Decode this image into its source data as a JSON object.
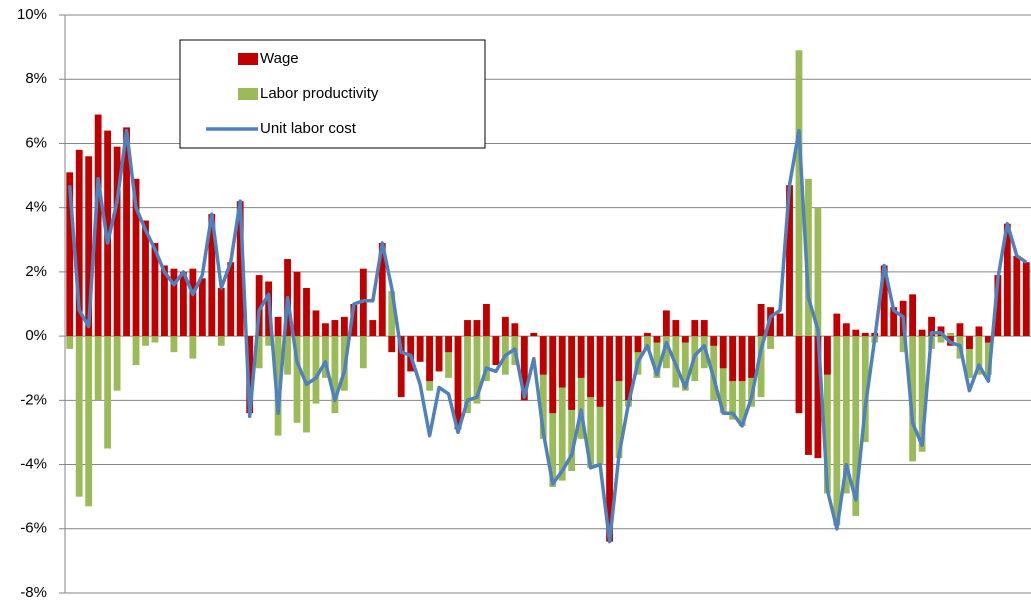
{
  "chart_data": {
    "type": "bar-line",
    "ylim": [
      -8,
      10
    ],
    "yticks": [
      {
        "value": -8,
        "label": "-8%"
      },
      {
        "value": -6,
        "label": "-6%"
      },
      {
        "value": -4,
        "label": "-4%"
      },
      {
        "value": -2,
        "label": "-2%"
      },
      {
        "value": 0,
        "label": "0%"
      },
      {
        "value": 2,
        "label": "2%"
      },
      {
        "value": 4,
        "label": "4%"
      },
      {
        "value": 6,
        "label": "6%"
      },
      {
        "value": 8,
        "label": "8%"
      },
      {
        "value": 10,
        "label": "10%"
      }
    ],
    "grid": true,
    "legend": "upper left",
    "series": [
      {
        "name": "Wage",
        "kind": "bar",
        "color": "#c00000",
        "values": [
          5.1,
          5.8,
          5.6,
          6.9,
          6.4,
          5.9,
          6.5,
          4.9,
          3.6,
          2.9,
          2.2,
          2.1,
          2.0,
          2.1,
          1.8,
          3.8,
          1.5,
          2.3,
          4.2,
          -2.4,
          1.9,
          1.7,
          0.6,
          2.4,
          2.0,
          1.5,
          0.8,
          0.4,
          0.5,
          0.6,
          1.0,
          2.1,
          0.5,
          2.9,
          -0.5,
          -1.9,
          -1.1,
          -0.8,
          -1.4,
          -1.1,
          -0.5,
          -2.9,
          0.5,
          0.5,
          1.0,
          -0.9,
          0.6,
          0.4,
          -2.0,
          0.1,
          -1.2,
          -2.4,
          -1.6,
          -2.3,
          -1.3,
          -1.9,
          -2.2,
          -6.4,
          -1.4,
          -2.0,
          -0.5,
          0.1,
          -0.2,
          0.8,
          0.5,
          -0.2,
          0.5,
          0.5,
          -0.3,
          -1.0,
          -1.4,
          -1.4,
          -1.3,
          1.0,
          0.9,
          0.7,
          4.7,
          -2.4,
          -3.7,
          -3.8,
          -1.2,
          0.7,
          0.4,
          0.2,
          0.1,
          0.1,
          2.2,
          0.9,
          1.1,
          1.3,
          0.2,
          0.6,
          0.3,
          -0.3,
          0.4,
          -0.4,
          0.3,
          -0.2,
          1.9,
          3.5,
          2.5,
          2.3
        ]
      },
      {
        "name": "Labor productivity",
        "kind": "bar",
        "color": "#9bbb59",
        "values": [
          -0.4,
          -5.0,
          -5.3,
          -2.0,
          -3.5,
          -1.7,
          0.1,
          -0.9,
          -0.3,
          -0.2,
          0.2,
          -0.5,
          1.0,
          -0.7,
          0.2,
          1.2,
          -0.3,
          1.2,
          0.5,
          0.0,
          -1.0,
          -0.3,
          -3.1,
          -1.2,
          -2.7,
          -3.0,
          -2.1,
          -1.3,
          -2.4,
          -1.7,
          0.0,
          -1.0,
          0.0,
          1.4,
          1.4,
          -0.3,
          -0.3,
          -0.7,
          -1.7,
          -0.5,
          -1.3,
          -2.0,
          -2.4,
          -2.1,
          -1.4,
          -0.3,
          -1.2,
          -0.9,
          -0.3,
          0.1,
          -3.2,
          -4.7,
          -4.5,
          -4.2,
          -3.2,
          -4.1,
          -4.0,
          -3.4,
          -3.8,
          -2.2,
          -1.2,
          -0.4,
          -1.3,
          -1.0,
          -1.6,
          -1.7,
          -1.4,
          -1.0,
          -2.0,
          -2.4,
          -2.6,
          -2.8,
          -2.2,
          -1.9,
          -0.4,
          0.3,
          4.4,
          8.9,
          4.9,
          4.0,
          -4.9,
          -5.9,
          -4.9,
          -5.6,
          -3.3,
          -0.2,
          1.6,
          0.7,
          -0.5,
          -3.9,
          -3.6,
          -0.4,
          -0.2,
          0.1,
          -0.7,
          -1.3,
          -1.2,
          -1.2,
          1.2,
          2.1,
          1.1,
          1.5
        ]
      },
      {
        "name": "Unit labor cost",
        "kind": "line",
        "color": "#4f81bd",
        "values": [
          4.7,
          0.8,
          0.3,
          4.9,
          2.9,
          4.2,
          6.4,
          4.0,
          3.3,
          2.7,
          2.0,
          1.6,
          2.0,
          1.3,
          1.9,
          3.8,
          1.5,
          2.3,
          4.2,
          -2.5,
          0.8,
          1.3,
          -2.4,
          1.2,
          -0.8,
          -1.5,
          -1.3,
          -0.8,
          -2.0,
          -1.1,
          1.0,
          1.1,
          1.1,
          2.9,
          1.5,
          -0.5,
          -0.6,
          -1.5,
          -3.1,
          -1.6,
          -1.8,
          -3.0,
          -2.0,
          -1.9,
          -1.0,
          -1.1,
          -0.6,
          -0.4,
          -1.9,
          -0.7,
          -3.0,
          -4.6,
          -4.2,
          -3.7,
          -2.3,
          -4.1,
          -4.0,
          -6.4,
          -3.7,
          -2.1,
          -0.8,
          -0.3,
          -1.2,
          -0.2,
          -0.9,
          -1.6,
          -0.6,
          -0.3,
          -1.3,
          -2.4,
          -2.4,
          -2.8,
          -1.9,
          -0.4,
          0.6,
          0.8,
          4.7,
          6.4,
          1.2,
          0.2,
          -4.8,
          -6.0,
          -4.0,
          -5.1,
          -2.2,
          -0.1,
          2.2,
          0.8,
          0.6,
          -2.7,
          -3.4,
          0.1,
          0.1,
          -0.2,
          -0.3,
          -1.7,
          -0.9,
          -1.4,
          1.8,
          3.5,
          2.5,
          2.3
        ]
      }
    ]
  }
}
